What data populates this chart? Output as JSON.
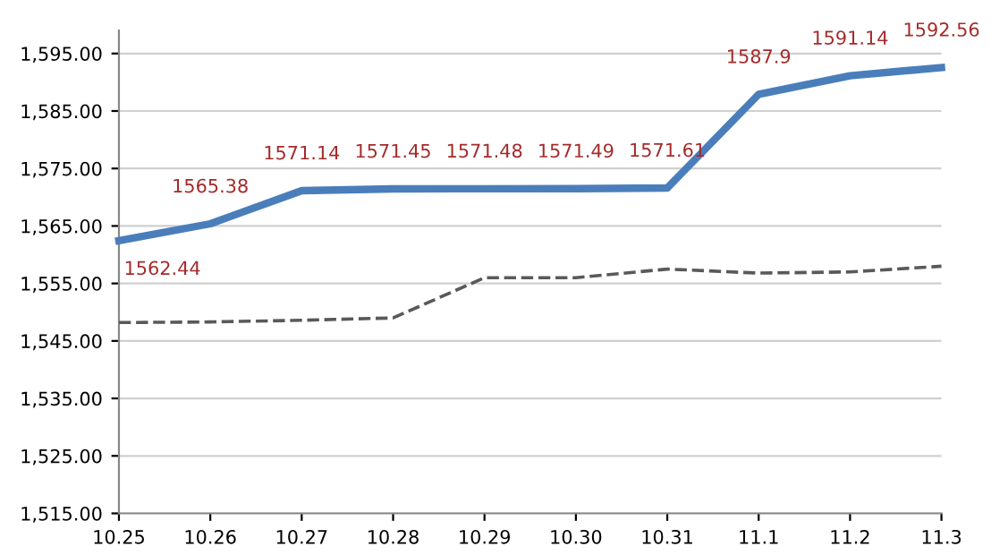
{
  "chart_data": {
    "type": "line",
    "categories": [
      "10.25",
      "10.26",
      "10.27",
      "10.28",
      "10.29",
      "10.30",
      "10.31",
      "11.1",
      "11.2",
      "11.3"
    ],
    "series": [
      {
        "color": "#4a7ebb",
        "line_style": "solid",
        "values": [
          1562.44,
          1565.38,
          1571.14,
          1571.45,
          1571.48,
          1571.49,
          1571.61,
          1587.9,
          1591.14,
          1592.56
        ],
        "value_labels": [
          "1562.44",
          "1565.38",
          "1571.14",
          "1571.45",
          "1571.48",
          "1571.49",
          "1571.61",
          "1587.9",
          "1591.14",
          "1592.56"
        ]
      },
      {
        "color": "#595959",
        "line_style": "dashed",
        "values": [
          1548.2,
          1548.3,
          1548.6,
          1549,
          1556,
          1556,
          1557.5,
          1556.8,
          1557,
          1558
        ]
      }
    ],
    "ylim": [
      1515,
      1599
    ],
    "yticks": [
      {
        "value": 1515,
        "label": "1,515.00"
      },
      {
        "value": 1525,
        "label": "1,525.00"
      },
      {
        "value": 1535,
        "label": "1,535.00"
      },
      {
        "value": 1545,
        "label": "1,545.00"
      },
      {
        "value": 1555,
        "label": "1,555.00"
      },
      {
        "value": 1565,
        "label": "1,565.00"
      },
      {
        "value": 1575,
        "label": "1,575.00"
      },
      {
        "value": 1585,
        "label": "1,585.00"
      },
      {
        "value": 1595,
        "label": "1,595.00"
      }
    ],
    "grid": "y",
    "legend": false,
    "marker": "none"
  }
}
